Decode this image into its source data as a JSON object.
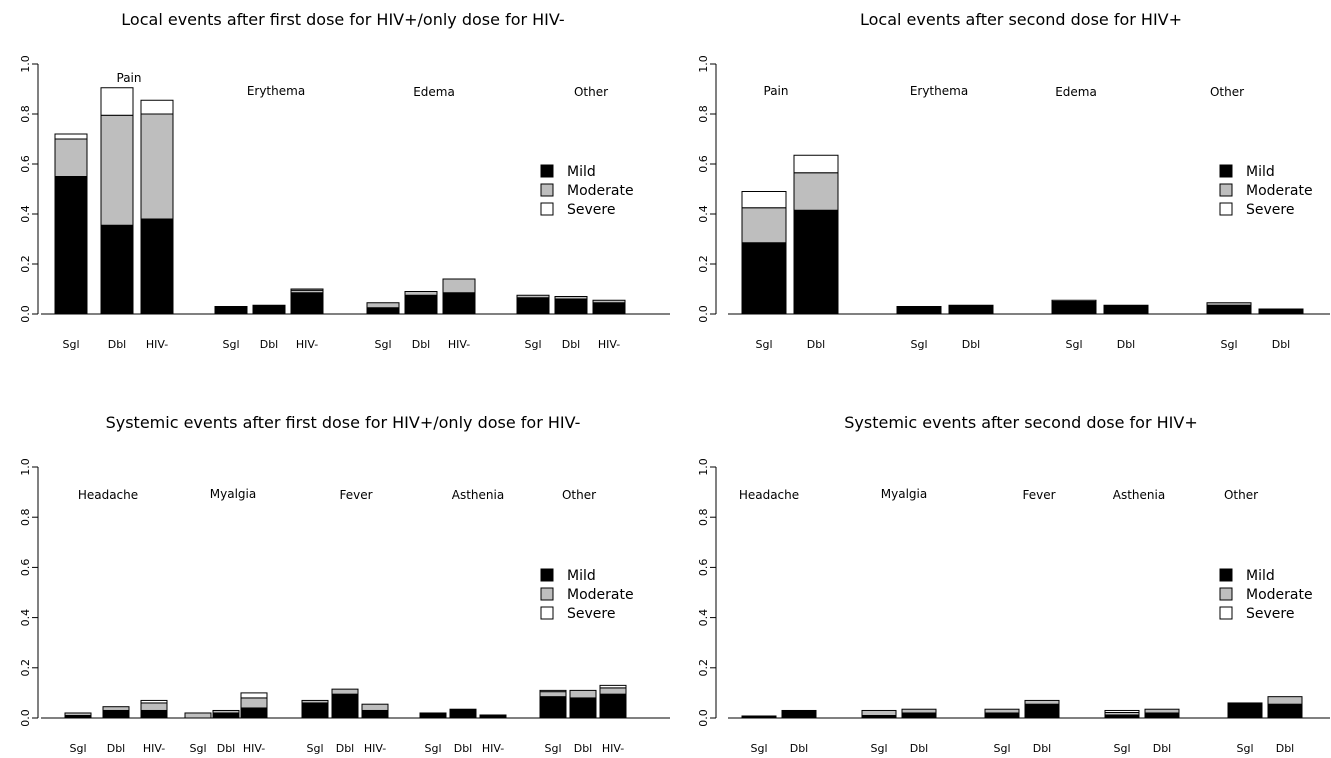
{
  "chart_data": [
    {
      "type": "bar",
      "stacked": true,
      "title": "Local events after first dose for HIV+/only dose for HIV-",
      "ylim": [
        0,
        1
      ],
      "yticks": [
        "0.0",
        "0.2",
        "0.4",
        "0.6",
        "0.8",
        "1.0"
      ],
      "legend": {
        "position": "right",
        "entries": [
          "Mild",
          "Moderate",
          "Severe"
        ]
      },
      "groups": [
        {
          "label": "Pain",
          "bars": [
            {
              "category": "Sgl",
              "mild": 0.55,
              "moderate": 0.15,
              "severe": 0.02
            },
            {
              "category": "Dbl",
              "mild": 0.355,
              "moderate": 0.44,
              "severe": 0.11
            },
            {
              "category": "HIV-",
              "mild": 0.38,
              "moderate": 0.42,
              "severe": 0.055
            }
          ]
        },
        {
          "label": "Erythema",
          "bars": [
            {
              "category": "Sgl",
              "mild": 0.03,
              "moderate": 0.0,
              "severe": 0.0
            },
            {
              "category": "Dbl",
              "mild": 0.035,
              "moderate": 0.0,
              "severe": 0.0
            },
            {
              "category": "HIV-",
              "mild": 0.085,
              "moderate": 0.01,
              "severe": 0.005
            }
          ]
        },
        {
          "label": "Edema",
          "bars": [
            {
              "category": "Sgl",
              "mild": 0.025,
              "moderate": 0.02,
              "severe": 0.0
            },
            {
              "category": "Dbl",
              "mild": 0.075,
              "moderate": 0.015,
              "severe": 0.0
            },
            {
              "category": "HIV-",
              "mild": 0.085,
              "moderate": 0.055,
              "severe": 0.0
            }
          ]
        },
        {
          "label": "Other",
          "bars": [
            {
              "category": "Sgl",
              "mild": 0.065,
              "moderate": 0.01,
              "severe": 0.0
            },
            {
              "category": "Dbl",
              "mild": 0.06,
              "moderate": 0.01,
              "severe": 0.0
            },
            {
              "category": "HIV-",
              "mild": 0.045,
              "moderate": 0.01,
              "severe": 0.0
            }
          ]
        }
      ]
    },
    {
      "type": "bar",
      "stacked": true,
      "title": "Local events after second dose for HIV+",
      "ylim": [
        0,
        1
      ],
      "yticks": [
        "0.0",
        "0.2",
        "0.4",
        "0.6",
        "0.8",
        "1.0"
      ],
      "legend": {
        "position": "right",
        "entries": [
          "Mild",
          "Moderate",
          "Severe"
        ]
      },
      "groups": [
        {
          "label": "Pain",
          "bars": [
            {
              "category": "Sgl",
              "mild": 0.285,
              "moderate": 0.14,
              "severe": 0.065
            },
            {
              "category": "Dbl",
              "mild": 0.415,
              "moderate": 0.15,
              "severe": 0.07
            }
          ]
        },
        {
          "label": "Erythema",
          "bars": [
            {
              "category": "Sgl",
              "mild": 0.03,
              "moderate": 0.0,
              "severe": 0.0
            },
            {
              "category": "Dbl",
              "mild": 0.035,
              "moderate": 0.0,
              "severe": 0.0
            }
          ]
        },
        {
          "label": "Edema",
          "bars": [
            {
              "category": "Sgl",
              "mild": 0.05,
              "moderate": 0.005,
              "severe": 0.0
            },
            {
              "category": "Dbl",
              "mild": 0.035,
              "moderate": 0.0,
              "severe": 0.0
            }
          ]
        },
        {
          "label": "Other",
          "bars": [
            {
              "category": "Sgl",
              "mild": 0.035,
              "moderate": 0.01,
              "severe": 0.0
            },
            {
              "category": "Dbl",
              "mild": 0.02,
              "moderate": 0.0,
              "severe": 0.0
            }
          ]
        }
      ]
    },
    {
      "type": "bar",
      "stacked": true,
      "title": "Systemic events after first dose for HIV+/only dose for HIV-",
      "ylim": [
        0,
        1
      ],
      "yticks": [
        "0.0",
        "0.2",
        "0.4",
        "0.6",
        "0.8",
        "1.0"
      ],
      "legend": {
        "position": "right",
        "entries": [
          "Mild",
          "Moderate",
          "Severe"
        ]
      },
      "groups": [
        {
          "label": "Headache",
          "bars": [
            {
              "category": "Sgl",
              "mild": 0.01,
              "moderate": 0.01,
              "severe": 0.0
            },
            {
              "category": "Dbl",
              "mild": 0.03,
              "moderate": 0.015,
              "severe": 0.0
            },
            {
              "category": "HIV-",
              "mild": 0.03,
              "moderate": 0.03,
              "severe": 0.01
            }
          ]
        },
        {
          "label": "Myalgia",
          "bars": [
            {
              "category": "Sgl",
              "mild": 0.0,
              "moderate": 0.02,
              "severe": 0.0
            },
            {
              "category": "Dbl",
              "mild": 0.02,
              "moderate": 0.01,
              "severe": 0.0
            },
            {
              "category": "HIV-",
              "mild": 0.04,
              "moderate": 0.04,
              "severe": 0.02
            }
          ]
        },
        {
          "label": "Fever",
          "bars": [
            {
              "category": "Sgl",
              "mild": 0.06,
              "moderate": 0.01,
              "severe": 0.0
            },
            {
              "category": "Dbl",
              "mild": 0.095,
              "moderate": 0.02,
              "severe": 0.0
            },
            {
              "category": "HIV-",
              "mild": 0.03,
              "moderate": 0.025,
              "severe": 0.0
            }
          ]
        },
        {
          "label": "Asthenia",
          "bars": [
            {
              "category": "Sgl",
              "mild": 0.02,
              "moderate": 0.0,
              "severe": 0.0
            },
            {
              "category": "Dbl",
              "mild": 0.035,
              "moderate": 0.0,
              "severe": 0.0
            },
            {
              "category": "HIV-",
              "mild": 0.012,
              "moderate": 0.0,
              "severe": 0.0
            }
          ]
        },
        {
          "label": "Other",
          "bars": [
            {
              "category": "Sgl",
              "mild": 0.085,
              "moderate": 0.02,
              "severe": 0.005
            },
            {
              "category": "Dbl",
              "mild": 0.08,
              "moderate": 0.03,
              "severe": 0.0
            },
            {
              "category": "HIV-",
              "mild": 0.095,
              "moderate": 0.025,
              "severe": 0.01
            }
          ]
        }
      ]
    },
    {
      "type": "bar",
      "stacked": true,
      "title": "Systemic events after second dose for HIV+",
      "ylim": [
        0,
        1
      ],
      "yticks": [
        "0.0",
        "0.2",
        "0.4",
        "0.6",
        "0.8",
        "1.0"
      ],
      "legend": {
        "position": "right",
        "entries": [
          "Mild",
          "Moderate",
          "Severe"
        ]
      },
      "groups": [
        {
          "label": "Headache",
          "bars": [
            {
              "category": "Sgl",
              "mild": 0.008,
              "moderate": 0.0,
              "severe": 0.0
            },
            {
              "category": "Dbl",
              "mild": 0.03,
              "moderate": 0.0,
              "severe": 0.0
            }
          ]
        },
        {
          "label": "Myalgia",
          "bars": [
            {
              "category": "Sgl",
              "mild": 0.01,
              "moderate": 0.02,
              "severe": 0.0
            },
            {
              "category": "Dbl",
              "mild": 0.02,
              "moderate": 0.015,
              "severe": 0.0
            }
          ]
        },
        {
          "label": "Fever",
          "bars": [
            {
              "category": "Sgl",
              "mild": 0.02,
              "moderate": 0.015,
              "severe": 0.0
            },
            {
              "category": "Dbl",
              "mild": 0.055,
              "moderate": 0.015,
              "severe": 0.0
            }
          ]
        },
        {
          "label": "Asthenia",
          "bars": [
            {
              "category": "Sgl",
              "mild": 0.012,
              "moderate": 0.01,
              "severe": 0.008
            },
            {
              "category": "Dbl",
              "mild": 0.02,
              "moderate": 0.015,
              "severe": 0.0
            }
          ]
        },
        {
          "label": "Other",
          "bars": [
            {
              "category": "Sgl",
              "mild": 0.06,
              "moderate": 0.0,
              "severe": 0.0
            },
            {
              "category": "Dbl",
              "mild": 0.055,
              "moderate": 0.03,
              "severe": 0.0
            }
          ]
        }
      ]
    }
  ],
  "colors": {
    "mild": "#000000",
    "moderate": "#bebebe",
    "severe": "#ffffff",
    "outline": "#000000"
  }
}
